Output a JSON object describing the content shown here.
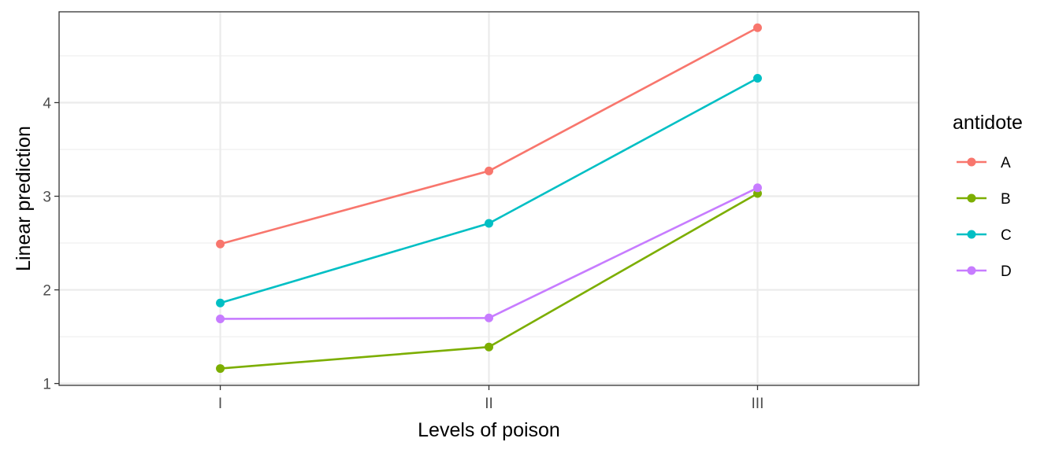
{
  "chart_data": {
    "type": "line",
    "xlabel": "Levels of poison",
    "ylabel": "Linear prediction",
    "categories": [
      "I",
      "II",
      "III"
    ],
    "y_ticks": [
      1,
      2,
      3,
      4
    ],
    "y_tick_labels": [
      "1",
      "2",
      "3",
      "4"
    ],
    "ylim": [
      0.98,
      4.97
    ],
    "grid": true,
    "legend": {
      "title": "antidote",
      "position": "right"
    },
    "series": [
      {
        "name": "A",
        "color": "#F8766D",
        "values": [
          2.49,
          3.27,
          4.8
        ]
      },
      {
        "name": "B",
        "color": "#7CAE00",
        "values": [
          1.16,
          1.39,
          3.03
        ]
      },
      {
        "name": "C",
        "color": "#00BFC4",
        "values": [
          1.86,
          2.71,
          4.26
        ]
      },
      {
        "name": "D",
        "color": "#C77CFF",
        "values": [
          1.69,
          1.7,
          3.09
        ]
      }
    ]
  }
}
